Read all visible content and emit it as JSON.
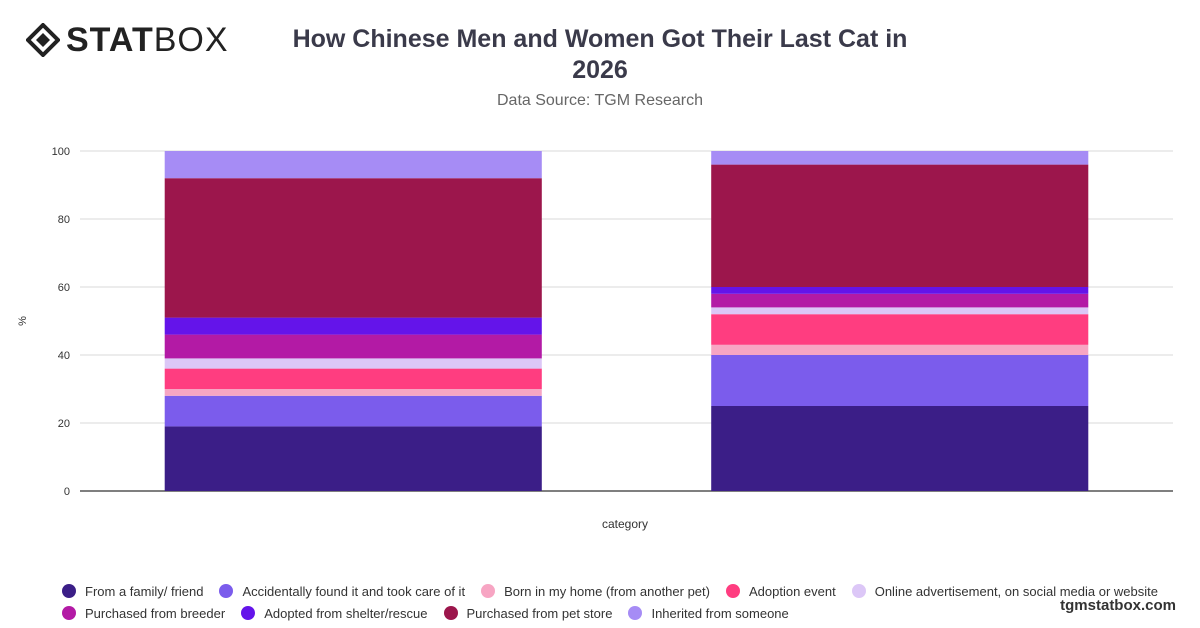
{
  "brand": {
    "logo_bold": "STAT",
    "logo_light": "BOX",
    "footer": "tgmstatbox.com"
  },
  "header": {
    "title_line1": "How Chinese Men and Women Got Their Last Cat in",
    "title_line2": "2026",
    "subtitle": "Data Source: TGM Research"
  },
  "chart_data": {
    "type": "bar",
    "stacked": true,
    "title": "How Chinese Men and Women Got Their Last Cat in 2026",
    "subtitle": "Data Source: TGM Research",
    "xlabel": "category",
    "ylabel": "%",
    "ylim": [
      0,
      100
    ],
    "yticks": [
      0,
      20,
      40,
      60,
      80,
      100
    ],
    "grid": true,
    "legend_position": "bottom",
    "categories": [
      "",
      ""
    ],
    "series": [
      {
        "name": "From a family/ friend",
        "color": "#3b1e87",
        "values": [
          19,
          25
        ]
      },
      {
        "name": "Accidentally found it and took care of it",
        "color": "#7b5cec",
        "values": [
          9,
          15
        ]
      },
      {
        "name": "Born in my home (from another pet)",
        "color": "#f7a5c3",
        "values": [
          2,
          3
        ]
      },
      {
        "name": "Adoption event",
        "color": "#ff3d80",
        "values": [
          6,
          9
        ]
      },
      {
        "name": "Online advertisement, on social media or website",
        "color": "#dcc7f7",
        "values": [
          3,
          2
        ]
      },
      {
        "name": "Purchased from breeder",
        "color": "#b31aa5",
        "values": [
          7,
          4
        ]
      },
      {
        "name": "Adopted from shelter/rescue",
        "color": "#6414ea",
        "values": [
          5,
          2
        ]
      },
      {
        "name": "Purchased from pet store",
        "color": "#9c164c",
        "values": [
          41,
          36
        ]
      },
      {
        "name": "Inherited from someone",
        "color": "#a68cf5",
        "values": [
          8,
          4
        ]
      }
    ]
  },
  "legend": {
    "row1": [
      {
        "label": "From a family/ friend",
        "color": "#3b1e87"
      },
      {
        "label": "Accidentally found it and took care of it",
        "color": "#7b5cec"
      },
      {
        "label": "Born in my home (from another pet)",
        "color": "#f7a5c3"
      },
      {
        "label": "Adoption event",
        "color": "#ff3d80"
      },
      {
        "label": "Online advertisement, on social media or website",
        "color": "#dcc7f7"
      }
    ],
    "row2": [
      {
        "label": "Purchased from breeder",
        "color": "#b31aa5"
      },
      {
        "label": "Adopted from shelter/rescue",
        "color": "#6414ea"
      },
      {
        "label": "Purchased from pet store",
        "color": "#9c164c"
      },
      {
        "label": "Inherited from someone",
        "color": "#a68cf5"
      }
    ]
  }
}
